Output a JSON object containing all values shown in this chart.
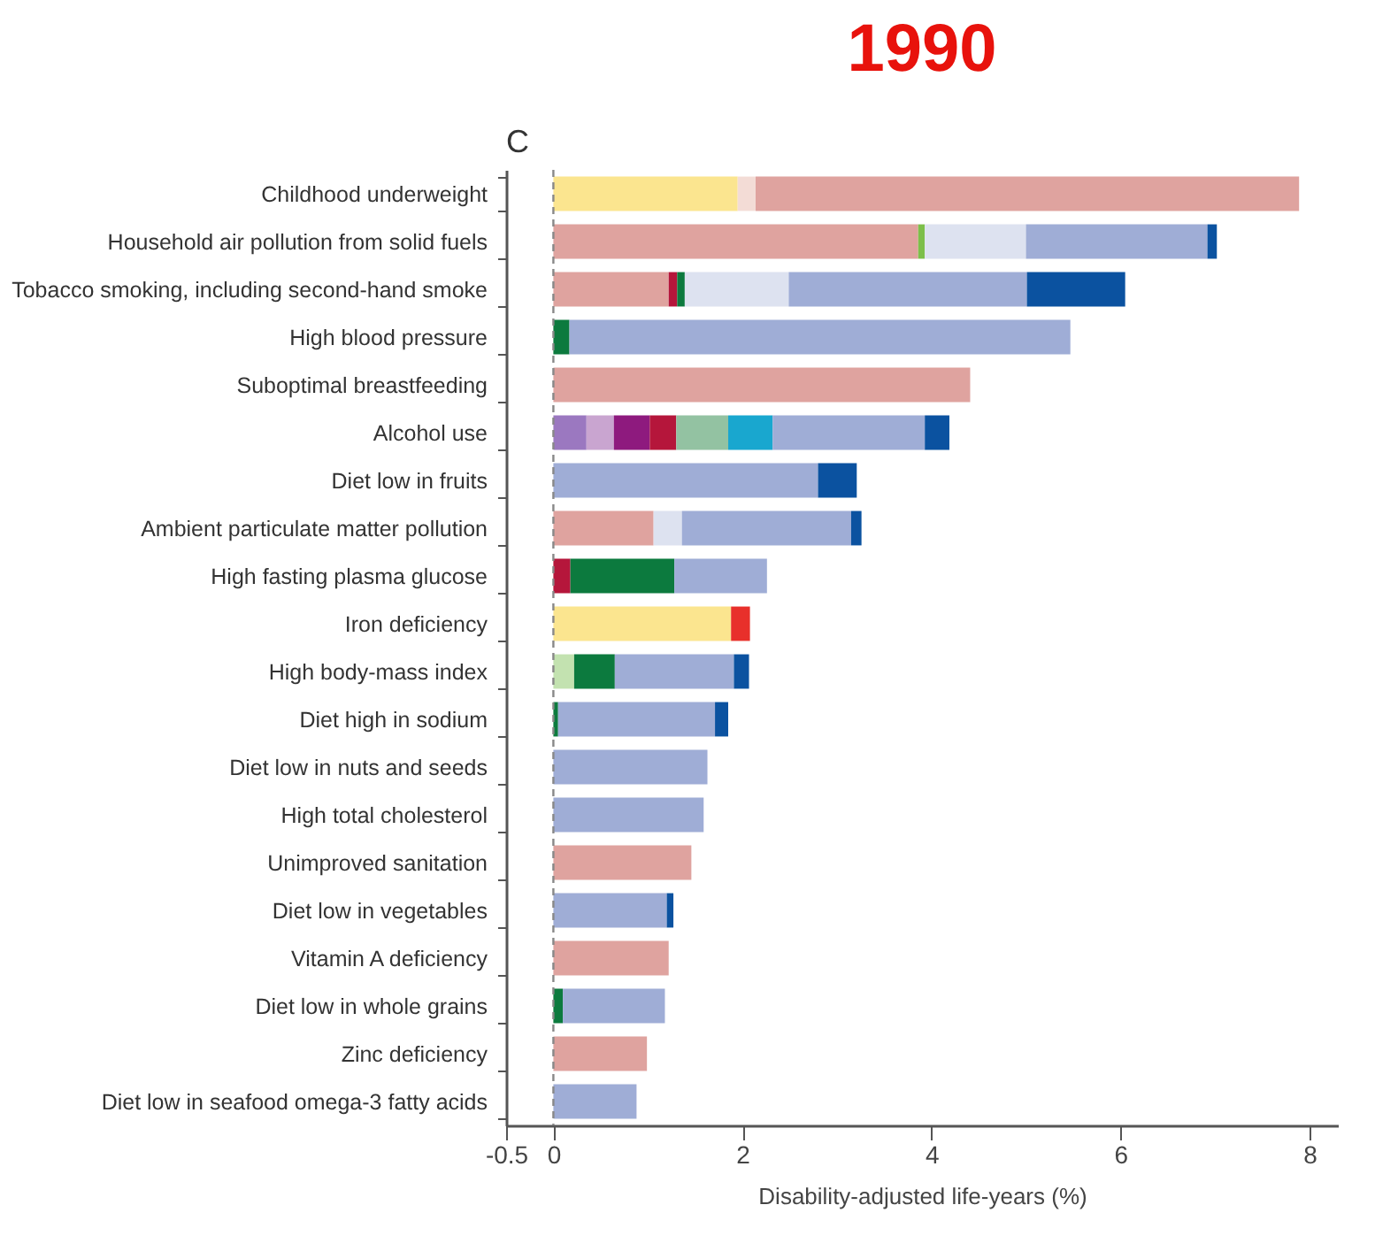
{
  "chart_data": {
    "type": "bar",
    "orientation": "horizontal",
    "stacked": true,
    "title": "1990",
    "xlabel": "Disability-adjusted life-years (%)",
    "annotations": [
      "C"
    ],
    "categories": [
      "Childhood underweight",
      "Household air pollution from solid fuels",
      "Tobacco smoking, including second-hand smoke",
      "High blood pressure",
      "Suboptimal breastfeeding",
      "Alcohol use",
      "Diet low in fruits",
      "Ambient particulate matter pollution",
      "High fasting plasma glucose",
      "Iron deficiency",
      "High body-mass index",
      "Diet high in sodium",
      "Diet low in nuts and seeds",
      "High total cholesterol",
      "Unimproved sanitation",
      "Diet low in vegetables",
      "Vitamin A deficiency",
      "Diet low in whole grains",
      "Zinc deficiency",
      "Diet low in seafood omega-3 fatty acids"
    ],
    "series": [
      {
        "color": "#fbe58f",
        "values": [
          1.95,
          null,
          null,
          null,
          null,
          null,
          null,
          null,
          null,
          1.88,
          null,
          null,
          null,
          null,
          null,
          null,
          null,
          null,
          null,
          null
        ]
      },
      {
        "color": "#f3dcd6",
        "values": [
          0.19,
          null,
          null,
          null,
          null,
          null,
          null,
          null,
          null,
          null,
          null,
          null,
          null,
          null,
          null,
          null,
          null,
          null,
          null,
          null
        ]
      },
      {
        "color": "#dfa39f",
        "values": [
          5.75,
          3.86,
          1.22,
          null,
          4.41,
          null,
          null,
          1.06,
          null,
          null,
          null,
          null,
          null,
          null,
          1.46,
          null,
          1.22,
          null,
          0.99,
          null
        ]
      },
      {
        "color": "#9b78c0",
        "values": [
          null,
          null,
          null,
          null,
          null,
          0.35,
          null,
          null,
          null,
          null,
          null,
          null,
          null,
          null,
          null,
          null,
          null,
          null,
          null,
          null
        ]
      },
      {
        "color": "#c9a5d0",
        "values": [
          null,
          null,
          null,
          null,
          null,
          0.29,
          null,
          null,
          null,
          null,
          null,
          null,
          null,
          null,
          null,
          null,
          null,
          null,
          null,
          null
        ]
      },
      {
        "color": "#8e1a7e",
        "values": [
          null,
          null,
          null,
          null,
          null,
          0.38,
          null,
          null,
          null,
          null,
          null,
          null,
          null,
          null,
          null,
          null,
          null,
          null,
          null,
          null
        ]
      },
      {
        "color": "#b5163b",
        "values": [
          null,
          null,
          0.09,
          null,
          null,
          0.28,
          null,
          null,
          0.18,
          null,
          null,
          null,
          null,
          null,
          null,
          null,
          null,
          null,
          null,
          null
        ]
      },
      {
        "color": "#7dbf4a",
        "values": [
          null,
          0.07,
          null,
          null,
          null,
          null,
          null,
          null,
          null,
          null,
          null,
          null,
          null,
          null,
          null,
          null,
          null,
          null,
          null,
          null
        ]
      },
      {
        "color": "#c3e2b0",
        "values": [
          null,
          null,
          null,
          null,
          null,
          null,
          null,
          null,
          null,
          null,
          0.22,
          null,
          null,
          null,
          null,
          null,
          null,
          null,
          null,
          null
        ]
      },
      {
        "color": "#0c7a3e",
        "values": [
          null,
          null,
          0.08,
          0.17,
          null,
          null,
          null,
          null,
          1.1,
          null,
          0.43,
          0.05,
          null,
          null,
          null,
          null,
          null,
          0.1,
          null,
          null
        ]
      },
      {
        "color": "#93c2a2",
        "values": [
          null,
          null,
          null,
          null,
          null,
          0.55,
          null,
          null,
          null,
          null,
          null,
          null,
          null,
          null,
          null,
          null,
          null,
          null,
          null,
          null
        ]
      },
      {
        "color": "#19a7cf",
        "values": [
          null,
          null,
          null,
          null,
          null,
          0.47,
          null,
          null,
          null,
          null,
          null,
          null,
          null,
          null,
          null,
          null,
          null,
          null,
          null,
          null
        ]
      },
      {
        "color": "#e8302b",
        "values": [
          null,
          null,
          null,
          null,
          null,
          null,
          null,
          null,
          null,
          0.2,
          null,
          null,
          null,
          null,
          null,
          null,
          null,
          null,
          null,
          null
        ]
      },
      {
        "color": "#dde2f0",
        "values": [
          null,
          1.07,
          1.1,
          null,
          null,
          null,
          null,
          0.3,
          null,
          null,
          null,
          null,
          null,
          null,
          null,
          null,
          null,
          null,
          null,
          null
        ]
      },
      {
        "color": "#9fadd6",
        "values": [
          null,
          1.92,
          2.52,
          5.3,
          null,
          1.61,
          2.8,
          1.79,
          0.98,
          null,
          1.26,
          1.66,
          1.63,
          1.59,
          null,
          1.2,
          null,
          1.08,
          null,
          0.88
        ]
      },
      {
        "color": "#0b52a0",
        "values": [
          null,
          0.1,
          1.04,
          null,
          null,
          0.26,
          0.41,
          0.11,
          null,
          null,
          0.16,
          0.14,
          null,
          null,
          null,
          0.07,
          null,
          null,
          null,
          null
        ]
      }
    ],
    "xlim": [
      -0.5,
      8.3
    ],
    "xticks": [
      -0.5,
      0,
      2,
      4,
      6,
      8
    ],
    "ref_lines": [
      {
        "axis": "x",
        "value": 0,
        "line_style": "dashed",
        "color": "#888888"
      }
    ]
  }
}
